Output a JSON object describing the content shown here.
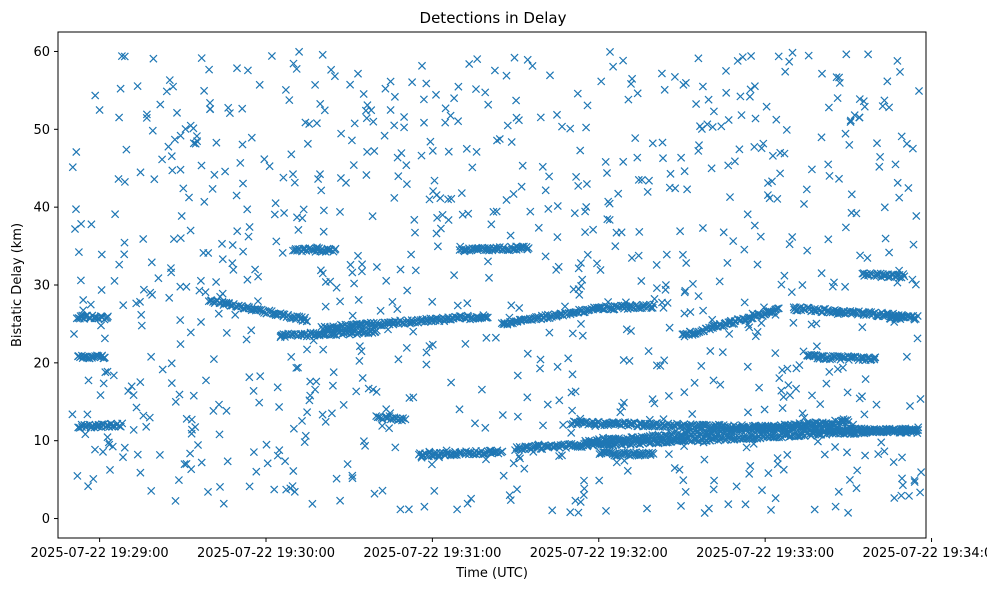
{
  "chart_data": {
    "type": "scatter",
    "title": "Detections in Delay",
    "xlabel": "Time (UTC)",
    "ylabel": "Bistatic Delay (km)",
    "marker": "x",
    "color": "#1f77b4",
    "grid": false,
    "legend": "none",
    "xlim": [
      "2025-07-22 19:28:45",
      "2025-07-22 19:33:58"
    ],
    "ylim": [
      -2.5,
      62.5
    ],
    "xticks": [
      "2025-07-22 19:29:00",
      "2025-07-22 19:30:00",
      "2025-07-22 19:31:00",
      "2025-07-22 19:32:00",
      "2025-07-22 19:33:00",
      "2025-07-22 19:34:00"
    ],
    "yticks": [
      0,
      10,
      20,
      30,
      40,
      50,
      60
    ],
    "tracks": [
      {
        "from": "2025-07-22 19:28:52",
        "to": "2025-07-22 19:29:08",
        "delay_start": 11.8,
        "delay_end": 12.0
      },
      {
        "from": "2025-07-22 19:28:52",
        "to": "2025-07-22 19:29:03",
        "delay_start": 25.9,
        "delay_end": 25.8
      },
      {
        "from": "2025-07-22 19:28:52",
        "to": "2025-07-22 19:29:02",
        "delay_start": 20.8,
        "delay_end": 20.7
      },
      {
        "from": "2025-07-22 19:29:40",
        "to": "2025-07-22 19:30:15",
        "delay_start": 28.0,
        "delay_end": 25.5
      },
      {
        "from": "2025-07-22 19:30:10",
        "to": "2025-07-22 19:30:25",
        "delay_start": 34.5,
        "delay_end": 34.5
      },
      {
        "from": "2025-07-22 19:30:05",
        "to": "2025-07-22 19:30:40",
        "delay_start": 23.5,
        "delay_end": 24.0
      },
      {
        "from": "2025-07-22 19:30:20",
        "to": "2025-07-22 19:31:20",
        "delay_start": 24.5,
        "delay_end": 26.0
      },
      {
        "from": "2025-07-22 19:30:40",
        "to": "2025-07-22 19:30:50",
        "delay_start": 13.0,
        "delay_end": 12.8
      },
      {
        "from": "2025-07-22 19:30:55",
        "to": "2025-07-22 19:31:25",
        "delay_start": 8.2,
        "delay_end": 8.6
      },
      {
        "from": "2025-07-22 19:31:10",
        "to": "2025-07-22 19:31:35",
        "delay_start": 34.5,
        "delay_end": 34.8
      },
      {
        "from": "2025-07-22 19:31:25",
        "to": "2025-07-22 19:32:00",
        "delay_start": 25.0,
        "delay_end": 27.0
      },
      {
        "from": "2025-07-22 19:31:30",
        "to": "2025-07-22 19:33:55",
        "delay_start": 9.0,
        "delay_end": 11.5
      },
      {
        "from": "2025-07-22 19:31:55",
        "to": "2025-07-22 19:33:30",
        "delay_start": 9.8,
        "delay_end": 12.5
      },
      {
        "from": "2025-07-22 19:31:50",
        "to": "2025-07-22 19:33:55",
        "delay_start": 12.3,
        "delay_end": 11.2
      },
      {
        "from": "2025-07-22 19:32:00",
        "to": "2025-07-22 19:32:20",
        "delay_start": 27.0,
        "delay_end": 27.3
      },
      {
        "from": "2025-07-22 19:32:00",
        "to": "2025-07-22 19:32:20",
        "delay_start": 8.3,
        "delay_end": 8.3
      },
      {
        "from": "2025-07-22 19:32:30",
        "to": "2025-07-22 19:33:05",
        "delay_start": 23.5,
        "delay_end": 26.8
      },
      {
        "from": "2025-07-22 19:33:10",
        "to": "2025-07-22 19:33:50",
        "delay_start": 27.0,
        "delay_end": 26.0
      },
      {
        "from": "2025-07-22 19:33:15",
        "to": "2025-07-22 19:33:40",
        "delay_start": 20.8,
        "delay_end": 20.5
      },
      {
        "from": "2025-07-22 19:33:45",
        "to": "2025-07-22 19:33:55",
        "delay_start": 25.8,
        "delay_end": 25.8
      },
      {
        "from": "2025-07-22 19:33:35",
        "to": "2025-07-22 19:33:50",
        "delay_start": 31.3,
        "delay_end": 31.2
      }
    ],
    "clutter": {
      "from": "2025-07-22 19:28:50",
      "to": "2025-07-22 19:33:57",
      "delay_min": 0.5,
      "delay_max": 60.0,
      "approx_count": 900
    }
  }
}
